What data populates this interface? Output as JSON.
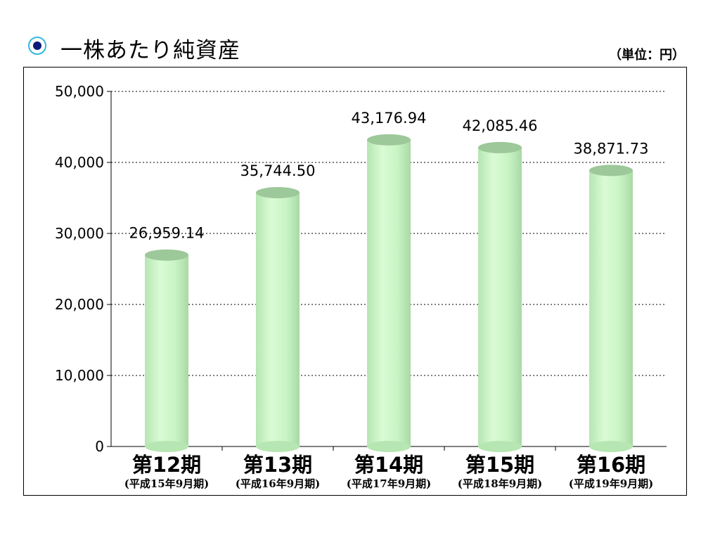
{
  "header": {
    "title": "一株あたり純資産",
    "bullet_icon": "circle-bullet-icon",
    "unit": "（単位：円）"
  },
  "colors": {
    "bar_body": "#c8f4c4",
    "bar_top": "#9dc89a",
    "bullet_ring": "#33b8e0",
    "bullet_center": "#0a1a7a"
  },
  "chart_data": {
    "type": "bar",
    "title": "",
    "xlabel": "",
    "ylabel": "",
    "categories": [
      "第12期",
      "第13期",
      "第14期",
      "第15期",
      "第16期"
    ],
    "sublabels": [
      "(平成15年9月期)",
      "(平成16年9月期)",
      "(平成17年9月期)",
      "(平成18年9月期)",
      "(平成19年9月期)"
    ],
    "values": [
      26959.14,
      35744.5,
      43176.94,
      42085.46,
      38871.73
    ],
    "value_labels": [
      "26,959.14",
      "35,744.50",
      "43,176.94",
      "42,085.46",
      "38,871.73"
    ],
    "yticks": [
      0,
      10000,
      20000,
      30000,
      40000,
      50000
    ],
    "ytick_labels": [
      "0",
      "10,000",
      "20,000",
      "30,000",
      "40,000",
      "50,000"
    ],
    "ylim": [
      0,
      50000
    ],
    "grid": true,
    "legend": "none"
  }
}
